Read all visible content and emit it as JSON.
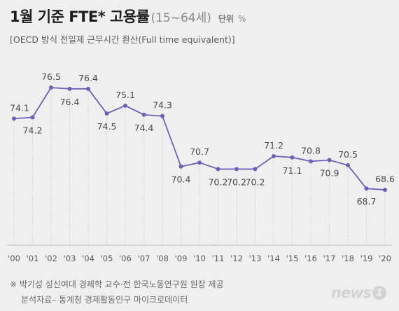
{
  "header": {
    "title": "1월 기준 FTE* 고용률",
    "range": "(15~64세)",
    "unit_label": "단위",
    "unit": "%",
    "subtitle": "[OECD 방식 전일제 근무시간 환산(Full time equivalent)]"
  },
  "chart_data": {
    "type": "line",
    "categories": [
      "'00",
      "'01",
      "'02",
      "'03",
      "'04",
      "'05",
      "'06",
      "'07",
      "'08",
      "'09",
      "'10",
      "'11",
      "'12",
      "'13",
      "'14",
      "'15",
      "'16",
      "'17",
      "'18",
      "'19",
      "'20"
    ],
    "values": [
      74.1,
      74.2,
      76.5,
      76.4,
      76.4,
      74.5,
      75.1,
      74.4,
      74.3,
      70.4,
      70.7,
      70.2,
      70.2,
      70.2,
      71.2,
      71.1,
      70.8,
      70.9,
      70.5,
      68.7,
      68.6
    ],
    "value_labels": [
      "74.1",
      "74.2",
      "76.5",
      "76.4",
      "76.4",
      "74.5",
      "75.1",
      "74.4",
      "74.3",
      "70.4",
      "70.7",
      "70.2",
      "70.2",
      "70.2",
      "71.2",
      "71.1",
      "70.8",
      "70.9",
      "70.5",
      "68.7",
      "68.6"
    ],
    "title": "1월 기준 FTE* 고용률",
    "ylim": [
      64,
      80
    ],
    "grid": false,
    "colors": {
      "line": "#6a62b5",
      "marker": "#6a62b5",
      "axis": "#bdbdbd",
      "label": "#4a4a4a"
    }
  },
  "footer": {
    "note": "※ 박기성 성신여대 경제학 교수·전 한국노동연구원 원장 제공",
    "source": "분석자료– 통계청 경제활동인구 마이크로데이터",
    "logo_text": "news",
    "logo_badge": "1"
  }
}
